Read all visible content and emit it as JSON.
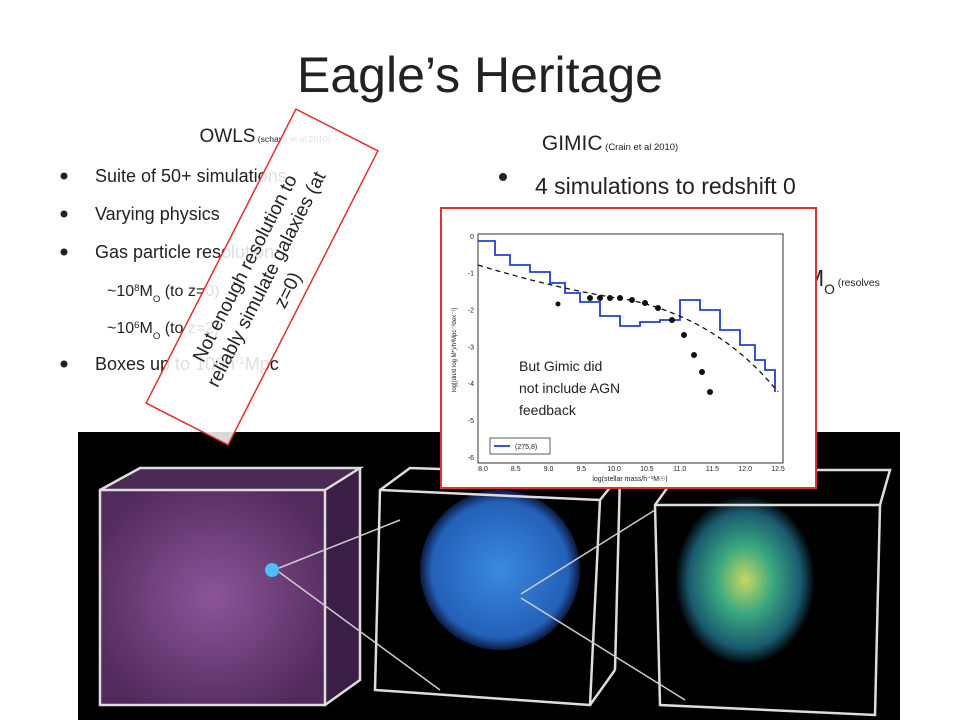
{
  "title": "Eagle’s Heritage",
  "left": {
    "heading": [
      {
        "t": "OWLS"
      },
      {
        "t": " (schaye et al 2010)",
        "s": "small"
      }
    ],
    "items": [
      {
        "kind": "bullet",
        "parts": [
          {
            "t": "Suite of 50+ simulations"
          }
        ]
      },
      {
        "kind": "bullet",
        "parts": [
          {
            "t": "Varying physics"
          }
        ]
      },
      {
        "kind": "bullet",
        "parts": [
          {
            "t": "Gas particle resolution"
          }
        ]
      },
      {
        "kind": "sub",
        "parts": [
          {
            "t": "~10"
          },
          {
            "t": "8",
            "s": "sup"
          },
          {
            "t": "M"
          },
          {
            "t": "O",
            "s": "sub"
          },
          {
            "t": " (to z=0)"
          }
        ]
      },
      {
        "kind": "sub",
        "parts": [
          {
            "t": "~10"
          },
          {
            "t": "6",
            "s": "sup"
          },
          {
            "t": "M"
          },
          {
            "t": "O",
            "s": "sub"
          },
          {
            "t": " (to z=2)"
          }
        ]
      },
      {
        "kind": "bullet",
        "parts": [
          {
            "t": "Boxes up to 100h"
          },
          {
            "t": "-1",
            "s": "sup"
          },
          {
            "t": "Mpc"
          }
        ]
      }
    ]
  },
  "right": {
    "heading": [
      {
        "t": "GIMIC"
      },
      {
        "t": " (Crain et al 2010)",
        "s": "small"
      }
    ],
    "items": [
      {
        "kind": "bullet",
        "parts": [
          {
            "t": "4 simulations to redshift 0"
          }
        ]
      },
      {
        "kind": "tail",
        "parts": [
          {
            "t": "M"
          },
          {
            "t": "O",
            "s": "sub"
          },
          {
            "t": " (resolves",
            "s": "small"
          }
        ]
      }
    ]
  },
  "callout": [
    "Not enough resolution to",
    "reliably simulate galaxies (at",
    "z=0)"
  ],
  "inset": {
    "yticks": [
      "0",
      "-1",
      "-2",
      "-3",
      "-4",
      "-5",
      "-6"
    ],
    "xticks": [
      "8.0",
      "8.5",
      "9.0",
      "9.5",
      "10.0",
      "10.5",
      "11.0",
      "11.5",
      "12.0",
      "12.5"
    ],
    "xlabel": "log(stellar mass/h⁻¹M☉)",
    "ylabel": "log[(dn/d log M*)/h³Mpc⁻³dex⁻¹]",
    "legend": "(275,8)",
    "note": [
      "But Gimic did",
      "not include AGN",
      "feedback"
    ]
  }
}
